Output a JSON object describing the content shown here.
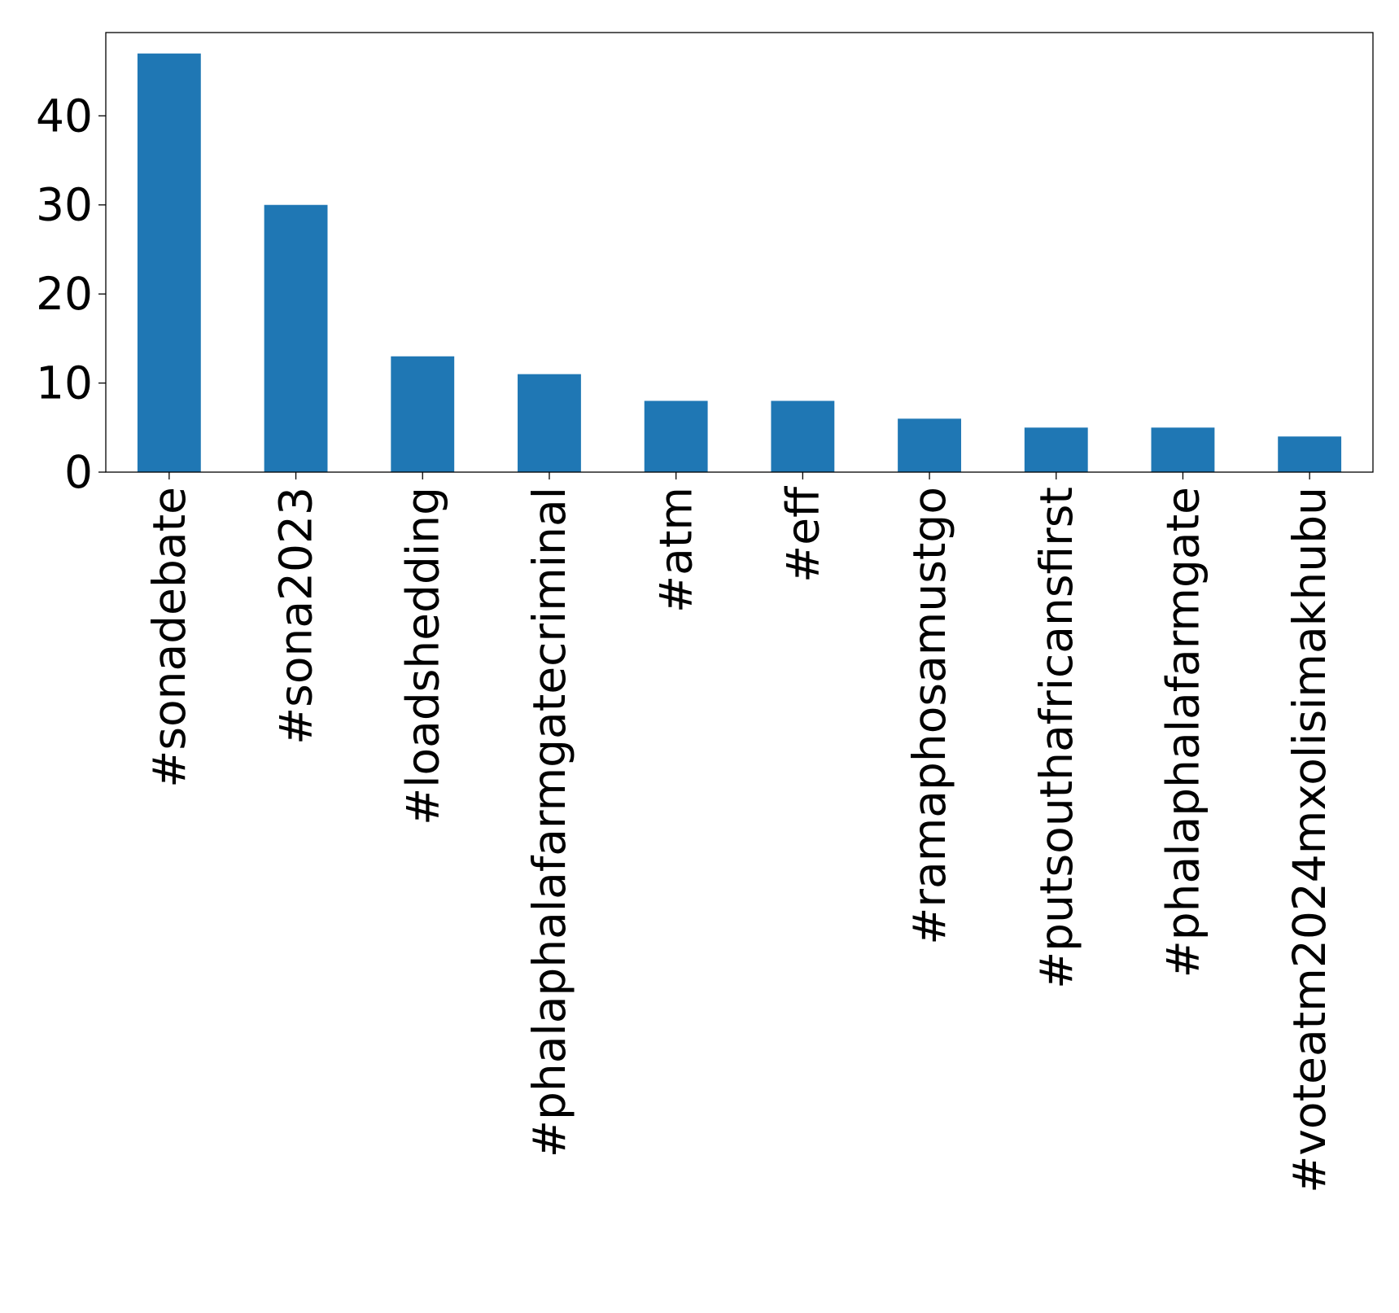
{
  "chart_data": {
    "type": "bar",
    "categories": [
      "#sonadebate",
      "#sona2023",
      "#loadshedding",
      "#phalaphalafarmgatecriminal",
      "#atm",
      "#eff",
      "#ramaphosamustgo",
      "#putsouthafricansfirst",
      "#phalaphalafarmgate",
      "#voteatm2024mxolisimakhubu"
    ],
    "values": [
      47,
      30,
      13,
      11,
      8,
      8,
      6,
      5,
      5,
      4
    ],
    "title": "",
    "xlabel": "",
    "ylabel": "",
    "ylim": [
      0,
      49.35
    ],
    "yticks": [
      0,
      10,
      20,
      30,
      40
    ],
    "x_tick_rotation": "vertical",
    "grid": false,
    "legend": "none",
    "bar_color": "#1f77b4"
  }
}
